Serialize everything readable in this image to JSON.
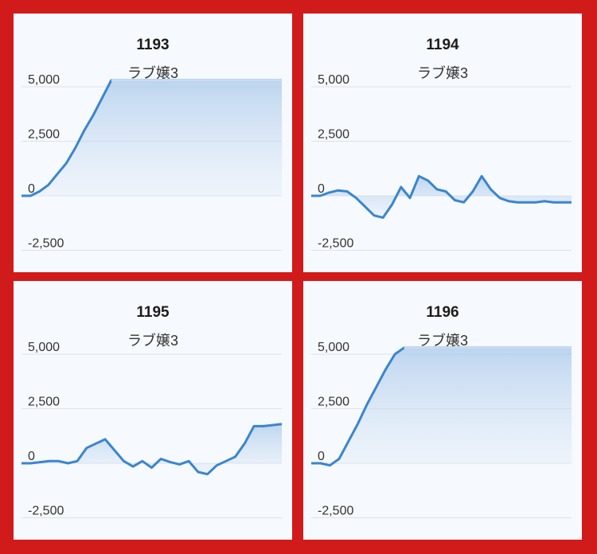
{
  "chart_data": [
    {
      "type": "area",
      "title": "1193",
      "subtitle": "ラブ嬢3",
      "ylim": [
        -3500,
        5500
      ],
      "yticks": [
        5000,
        2500,
        0,
        -2500
      ],
      "ytick_labels": [
        "5,000",
        "2,500",
        "0",
        "-2,500"
      ],
      "grid": true,
      "values": [
        0,
        0,
        200,
        500,
        1000,
        1500,
        2200,
        3000,
        3700,
        4500,
        5300,
        5300,
        5300,
        5300,
        5300,
        5300,
        5300,
        5300,
        5300,
        5300,
        5300,
        5300,
        5300,
        5300,
        5300,
        5300,
        5300,
        5300,
        5300,
        5300
      ]
    },
    {
      "type": "area",
      "title": "1194",
      "subtitle": "ラブ嬢3",
      "ylim": [
        -3500,
        5500
      ],
      "yticks": [
        5000,
        2500,
        0,
        -2500
      ],
      "ytick_labels": [
        "5,000",
        "2,500",
        "0",
        "-2,500"
      ],
      "grid": true,
      "values": [
        0,
        0,
        150,
        250,
        200,
        -100,
        -500,
        -900,
        -1000,
        -400,
        400,
        -100,
        900,
        700,
        300,
        200,
        -200,
        -300,
        200,
        900,
        300,
        -100,
        -250,
        -300,
        -300,
        -300,
        -250,
        -300,
        -300,
        -300
      ]
    },
    {
      "type": "area",
      "title": "1195",
      "subtitle": "ラブ嬢3",
      "ylim": [
        -3500,
        5500
      ],
      "yticks": [
        5000,
        2500,
        0,
        -2500
      ],
      "ytick_labels": [
        "5,000",
        "2,500",
        "0",
        "-2,500"
      ],
      "grid": true,
      "values": [
        0,
        0,
        50,
        100,
        100,
        0,
        100,
        700,
        900,
        1100,
        600,
        100,
        -150,
        100,
        -200,
        200,
        50,
        -50,
        100,
        -400,
        -500,
        -100,
        100,
        300,
        900,
        1700,
        1700,
        1750,
        1800
      ]
    },
    {
      "type": "area",
      "title": "1196",
      "subtitle": "ラブ嬢3",
      "ylim": [
        -3500,
        5500
      ],
      "yticks": [
        5000,
        2500,
        0,
        -2500
      ],
      "ytick_labels": [
        "5,000",
        "2,500",
        "0",
        "-2,500"
      ],
      "grid": true,
      "values": [
        0,
        0,
        -100,
        200,
        1000,
        1800,
        2700,
        3500,
        4300,
        5000,
        5300,
        5300,
        5300,
        5300,
        5300,
        5300,
        5300,
        5300,
        5300,
        5300,
        5300,
        5300,
        5300,
        5300,
        5300,
        5300,
        5300,
        5300,
        5300
      ]
    }
  ]
}
